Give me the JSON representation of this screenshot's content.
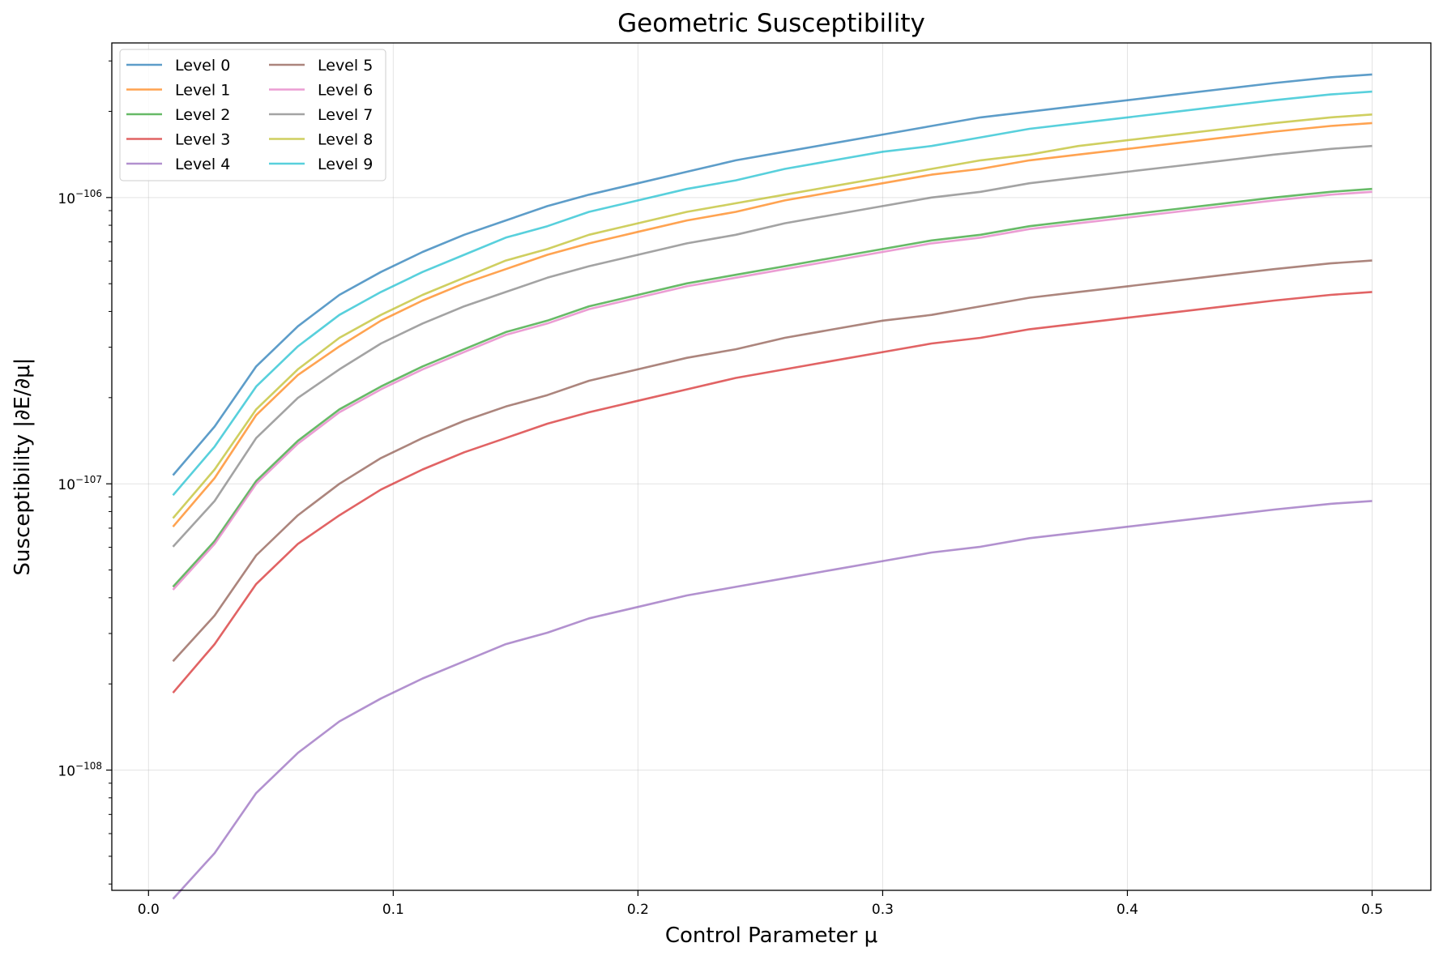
{
  "chart_data": {
    "type": "line",
    "title": "Geometric Susceptibility",
    "xlabel": "Control Parameter μ",
    "ylabel": "Susceptibility |∂E/∂μ|",
    "yscale": "log",
    "y_exponent_range": [
      -108.42,
      -105.46
    ],
    "xlim": [
      -0.015,
      0.524
    ],
    "x_ticks": [
      0.0,
      0.1,
      0.2,
      0.3,
      0.4,
      0.5
    ],
    "x_tick_labels": [
      "0.0",
      "0.1",
      "0.2",
      "0.3",
      "0.4",
      "0.5"
    ],
    "y_ticks": [
      {
        "base": "10",
        "exp": "−108",
        "value_exp": -108
      },
      {
        "base": "10",
        "exp": "−107",
        "value_exp": -107
      },
      {
        "base": "10",
        "exp": "−106",
        "value_exp": -106
      }
    ],
    "grid": true,
    "legend_position": "top-left",
    "legend_columns": 2,
    "x": [
      0.01,
      0.027,
      0.044,
      0.061,
      0.078,
      0.095,
      0.112,
      0.129,
      0.146,
      0.163,
      0.18,
      0.2,
      0.22,
      0.24,
      0.26,
      0.28,
      0.3,
      0.32,
      0.34,
      0.36,
      0.38,
      0.4,
      0.42,
      0.44,
      0.46,
      0.483,
      0.5
    ],
    "series": [
      {
        "name": "Level 0",
        "color": "#1f77b4",
        "exps": [
          -106.97,
          -106.8,
          -106.59,
          -106.45,
          -106.34,
          -106.26,
          -106.19,
          -106.13,
          -106.08,
          -106.03,
          -105.99,
          -105.95,
          -105.91,
          -105.87,
          -105.84,
          -105.81,
          -105.78,
          -105.75,
          -105.72,
          -105.7,
          -105.68,
          -105.66,
          -105.64,
          -105.62,
          -105.6,
          -105.58,
          -105.57
        ]
      },
      {
        "name": "Level 1",
        "color": "#ff7f0e",
        "exps": [
          -107.15,
          -106.98,
          -106.76,
          -106.62,
          -106.52,
          -106.43,
          -106.36,
          -106.3,
          -106.25,
          -106.2,
          -106.16,
          -106.12,
          -106.08,
          -106.05,
          -106.01,
          -105.98,
          -105.95,
          -105.92,
          -105.9,
          -105.87,
          -105.85,
          -105.83,
          -105.81,
          -105.79,
          -105.77,
          -105.75,
          -105.74
        ]
      },
      {
        "name": "Level 2",
        "color": "#2ca02c",
        "exps": [
          -107.36,
          -107.2,
          -106.99,
          -106.85,
          -106.74,
          -106.66,
          -106.59,
          -106.53,
          -106.47,
          -106.43,
          -106.38,
          -106.34,
          -106.3,
          -106.27,
          -106.24,
          -106.21,
          -106.18,
          -106.15,
          -106.13,
          -106.1,
          -106.08,
          -106.06,
          -106.04,
          -106.02,
          -106.0,
          -105.98,
          -105.97
        ]
      },
      {
        "name": "Level 3",
        "color": "#d62728",
        "exps": [
          -107.73,
          -107.56,
          -107.35,
          -107.21,
          -107.11,
          -107.02,
          -106.95,
          -106.89,
          -106.84,
          -106.79,
          -106.75,
          -106.71,
          -106.67,
          -106.63,
          -106.6,
          -106.57,
          -106.54,
          -106.51,
          -106.49,
          -106.46,
          -106.44,
          -106.42,
          -106.4,
          -106.38,
          -106.36,
          -106.34,
          -106.33
        ]
      },
      {
        "name": "Level 4",
        "color": "#9467bd",
        "exps": [
          -108.45,
          -108.29,
          -108.08,
          -107.94,
          -107.83,
          -107.75,
          -107.68,
          -107.62,
          -107.56,
          -107.52,
          -107.47,
          -107.43,
          -107.39,
          -107.36,
          -107.33,
          -107.3,
          -107.27,
          -107.24,
          -107.22,
          -107.19,
          -107.17,
          -107.15,
          -107.13,
          -107.11,
          -107.09,
          -107.07,
          -107.06
        ]
      },
      {
        "name": "Level 5",
        "color": "#8c564b",
        "exps": [
          -107.62,
          -107.46,
          -107.25,
          -107.11,
          -107.0,
          -106.91,
          -106.84,
          -106.78,
          -106.73,
          -106.69,
          -106.64,
          -106.6,
          -106.56,
          -106.53,
          -106.49,
          -106.46,
          -106.43,
          -106.41,
          -106.38,
          -106.35,
          -106.33,
          -106.31,
          -106.29,
          -106.27,
          -106.25,
          -106.23,
          -106.22
        ]
      },
      {
        "name": "Level 6",
        "color": "#e377c2",
        "exps": [
          -107.37,
          -107.21,
          -107.0,
          -106.86,
          -106.75,
          -106.67,
          -106.6,
          -106.54,
          -106.48,
          -106.44,
          -106.39,
          -106.35,
          -106.31,
          -106.28,
          -106.25,
          -106.22,
          -106.19,
          -106.16,
          -106.14,
          -106.11,
          -106.09,
          -106.07,
          -106.05,
          -106.03,
          -106.01,
          -105.99,
          -105.98
        ]
      },
      {
        "name": "Level 7",
        "color": "#7f7f7f",
        "exps": [
          -107.22,
          -107.06,
          -106.84,
          -106.7,
          -106.6,
          -106.51,
          -106.44,
          -106.38,
          -106.33,
          -106.28,
          -106.24,
          -106.2,
          -106.16,
          -106.13,
          -106.09,
          -106.06,
          -106.03,
          -106.0,
          -105.98,
          -105.95,
          -105.93,
          -105.91,
          -105.89,
          -105.87,
          -105.85,
          -105.83,
          -105.82
        ]
      },
      {
        "name": "Level 8",
        "color": "#bcbd22",
        "exps": [
          -107.12,
          -106.95,
          -106.74,
          -106.6,
          -106.49,
          -106.41,
          -106.34,
          -106.28,
          -106.22,
          -106.18,
          -106.13,
          -106.09,
          -106.05,
          -106.02,
          -105.99,
          -105.96,
          -105.93,
          -105.9,
          -105.87,
          -105.85,
          -105.82,
          -105.8,
          -105.78,
          -105.76,
          -105.74,
          -105.72,
          -105.71
        ]
      },
      {
        "name": "Level 9",
        "color": "#17becf",
        "exps": [
          -107.04,
          -106.87,
          -106.66,
          -106.52,
          -106.41,
          -106.33,
          -106.26,
          -106.2,
          -106.14,
          -106.1,
          -106.05,
          -106.01,
          -105.97,
          -105.94,
          -105.9,
          -105.87,
          -105.84,
          -105.82,
          -105.79,
          -105.76,
          -105.74,
          -105.72,
          -105.7,
          -105.68,
          -105.66,
          -105.64,
          -105.63
        ]
      }
    ]
  }
}
